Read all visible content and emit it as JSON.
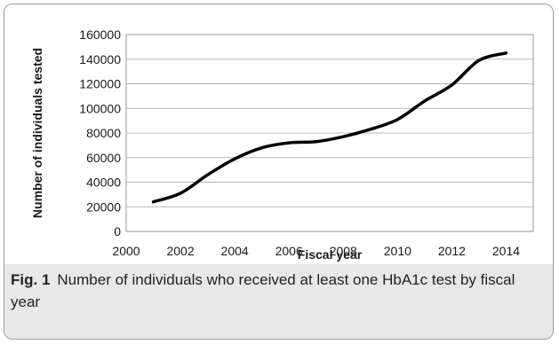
{
  "chart_data": {
    "type": "line",
    "title": "",
    "xlabel": "Fiscal year",
    "ylabel": "Number of individuals tested",
    "x": [
      2001,
      2002,
      2003,
      2004,
      2005,
      2006,
      2007,
      2008,
      2009,
      2010,
      2011,
      2012,
      2013,
      2014
    ],
    "series": [
      {
        "values": [
          24000,
          31000,
          46000,
          59000,
          68000,
          72000,
          73000,
          77000,
          83000,
          91000,
          106000,
          119000,
          139000,
          145000
        ],
        "color": "#000000"
      }
    ],
    "xlim": [
      2000,
      2015
    ],
    "ylim": [
      0,
      160000
    ],
    "x_ticks": [
      2000,
      2002,
      2004,
      2006,
      2008,
      2010,
      2012,
      2014
    ],
    "y_ticks": [
      0,
      20000,
      40000,
      60000,
      80000,
      100000,
      120000,
      140000,
      160000
    ],
    "grid": "horizontal",
    "legend": "none"
  },
  "caption": {
    "label": "Fig. 1",
    "text": "Number of individuals who received at least one HbA1c test by fiscal year"
  },
  "colors": {
    "line": "#000000",
    "gridline": "#b8b8b8",
    "caption_background": "#e8e8e8",
    "frame_border": "#9a9a9a"
  }
}
